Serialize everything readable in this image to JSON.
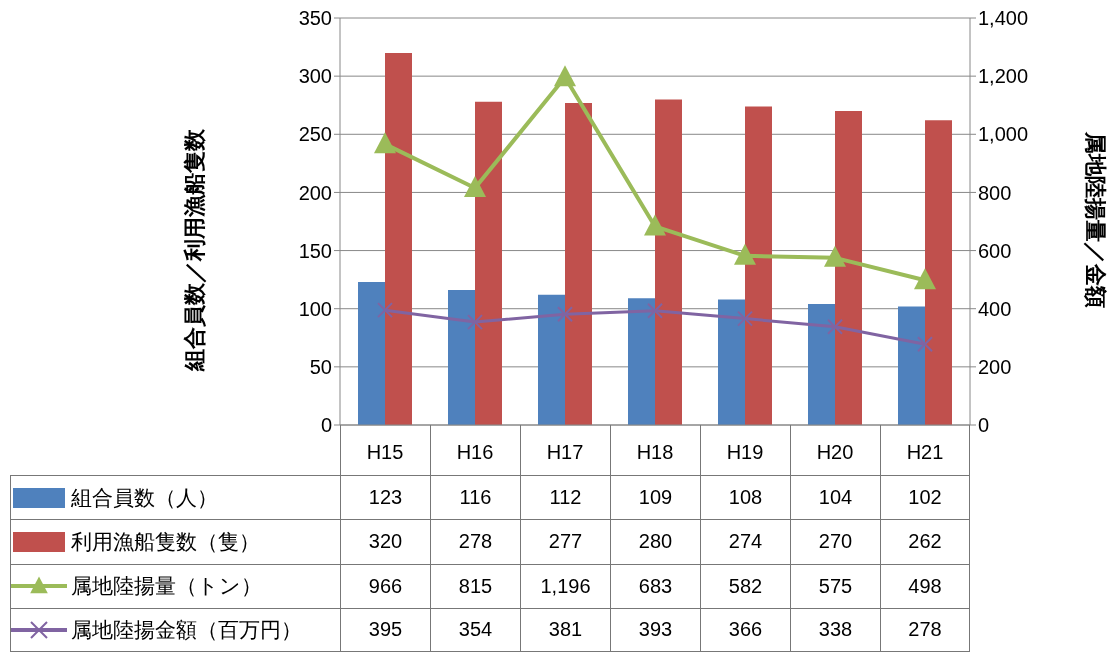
{
  "chart_data": {
    "type": "bar",
    "ylabel": "組合員数／利用漁船隻数",
    "y2label": "属地陸揚量／金額",
    "categories": [
      "H15",
      "H16",
      "H17",
      "H18",
      "H19",
      "H20",
      "H21"
    ],
    "series": [
      {
        "name": "組合員数（人）",
        "color": "#4f81bd",
        "values": [
          123,
          116,
          112,
          109,
          108,
          104,
          102
        ]
      },
      {
        "name": "利用漁船隻数（隻）",
        "color": "#c0504d",
        "values": [
          320,
          278,
          277,
          280,
          274,
          270,
          262
        ]
      },
      {
        "name": "属地陸揚量（トン）",
        "type": "line",
        "axis": "y2",
        "marker": "triangle",
        "color": "#9bbb59",
        "values": [
          966,
          815,
          1196,
          683,
          582,
          575,
          498
        ],
        "value_labels": [
          "966",
          "815",
          "1,196",
          "683",
          "582",
          "575",
          "498"
        ]
      },
      {
        "name": "属地陸揚金額（百万円）",
        "type": "line",
        "axis": "y2",
        "marker": "cross",
        "color": "#8064a2",
        "values": [
          395,
          354,
          381,
          393,
          366,
          338,
          278
        ]
      }
    ],
    "ylim": [
      0,
      350
    ],
    "yticks": [
      0,
      50,
      100,
      150,
      200,
      250,
      300,
      350
    ],
    "y2lim": [
      0,
      1400
    ],
    "y2ticks": [
      0,
      {
        "value": 200,
        "label": "200"
      },
      {
        "value": 400,
        "label": "400"
      },
      {
        "value": 600,
        "label": "600"
      },
      {
        "value": 800,
        "label": "800"
      },
      {
        "value": 1000,
        "label": "1,000"
      },
      {
        "value": 1200,
        "label": "1,200"
      },
      {
        "value": 1400,
        "label": "1,400"
      }
    ],
    "grid": "y",
    "legend": "bottom",
    "data_labels": true
  }
}
